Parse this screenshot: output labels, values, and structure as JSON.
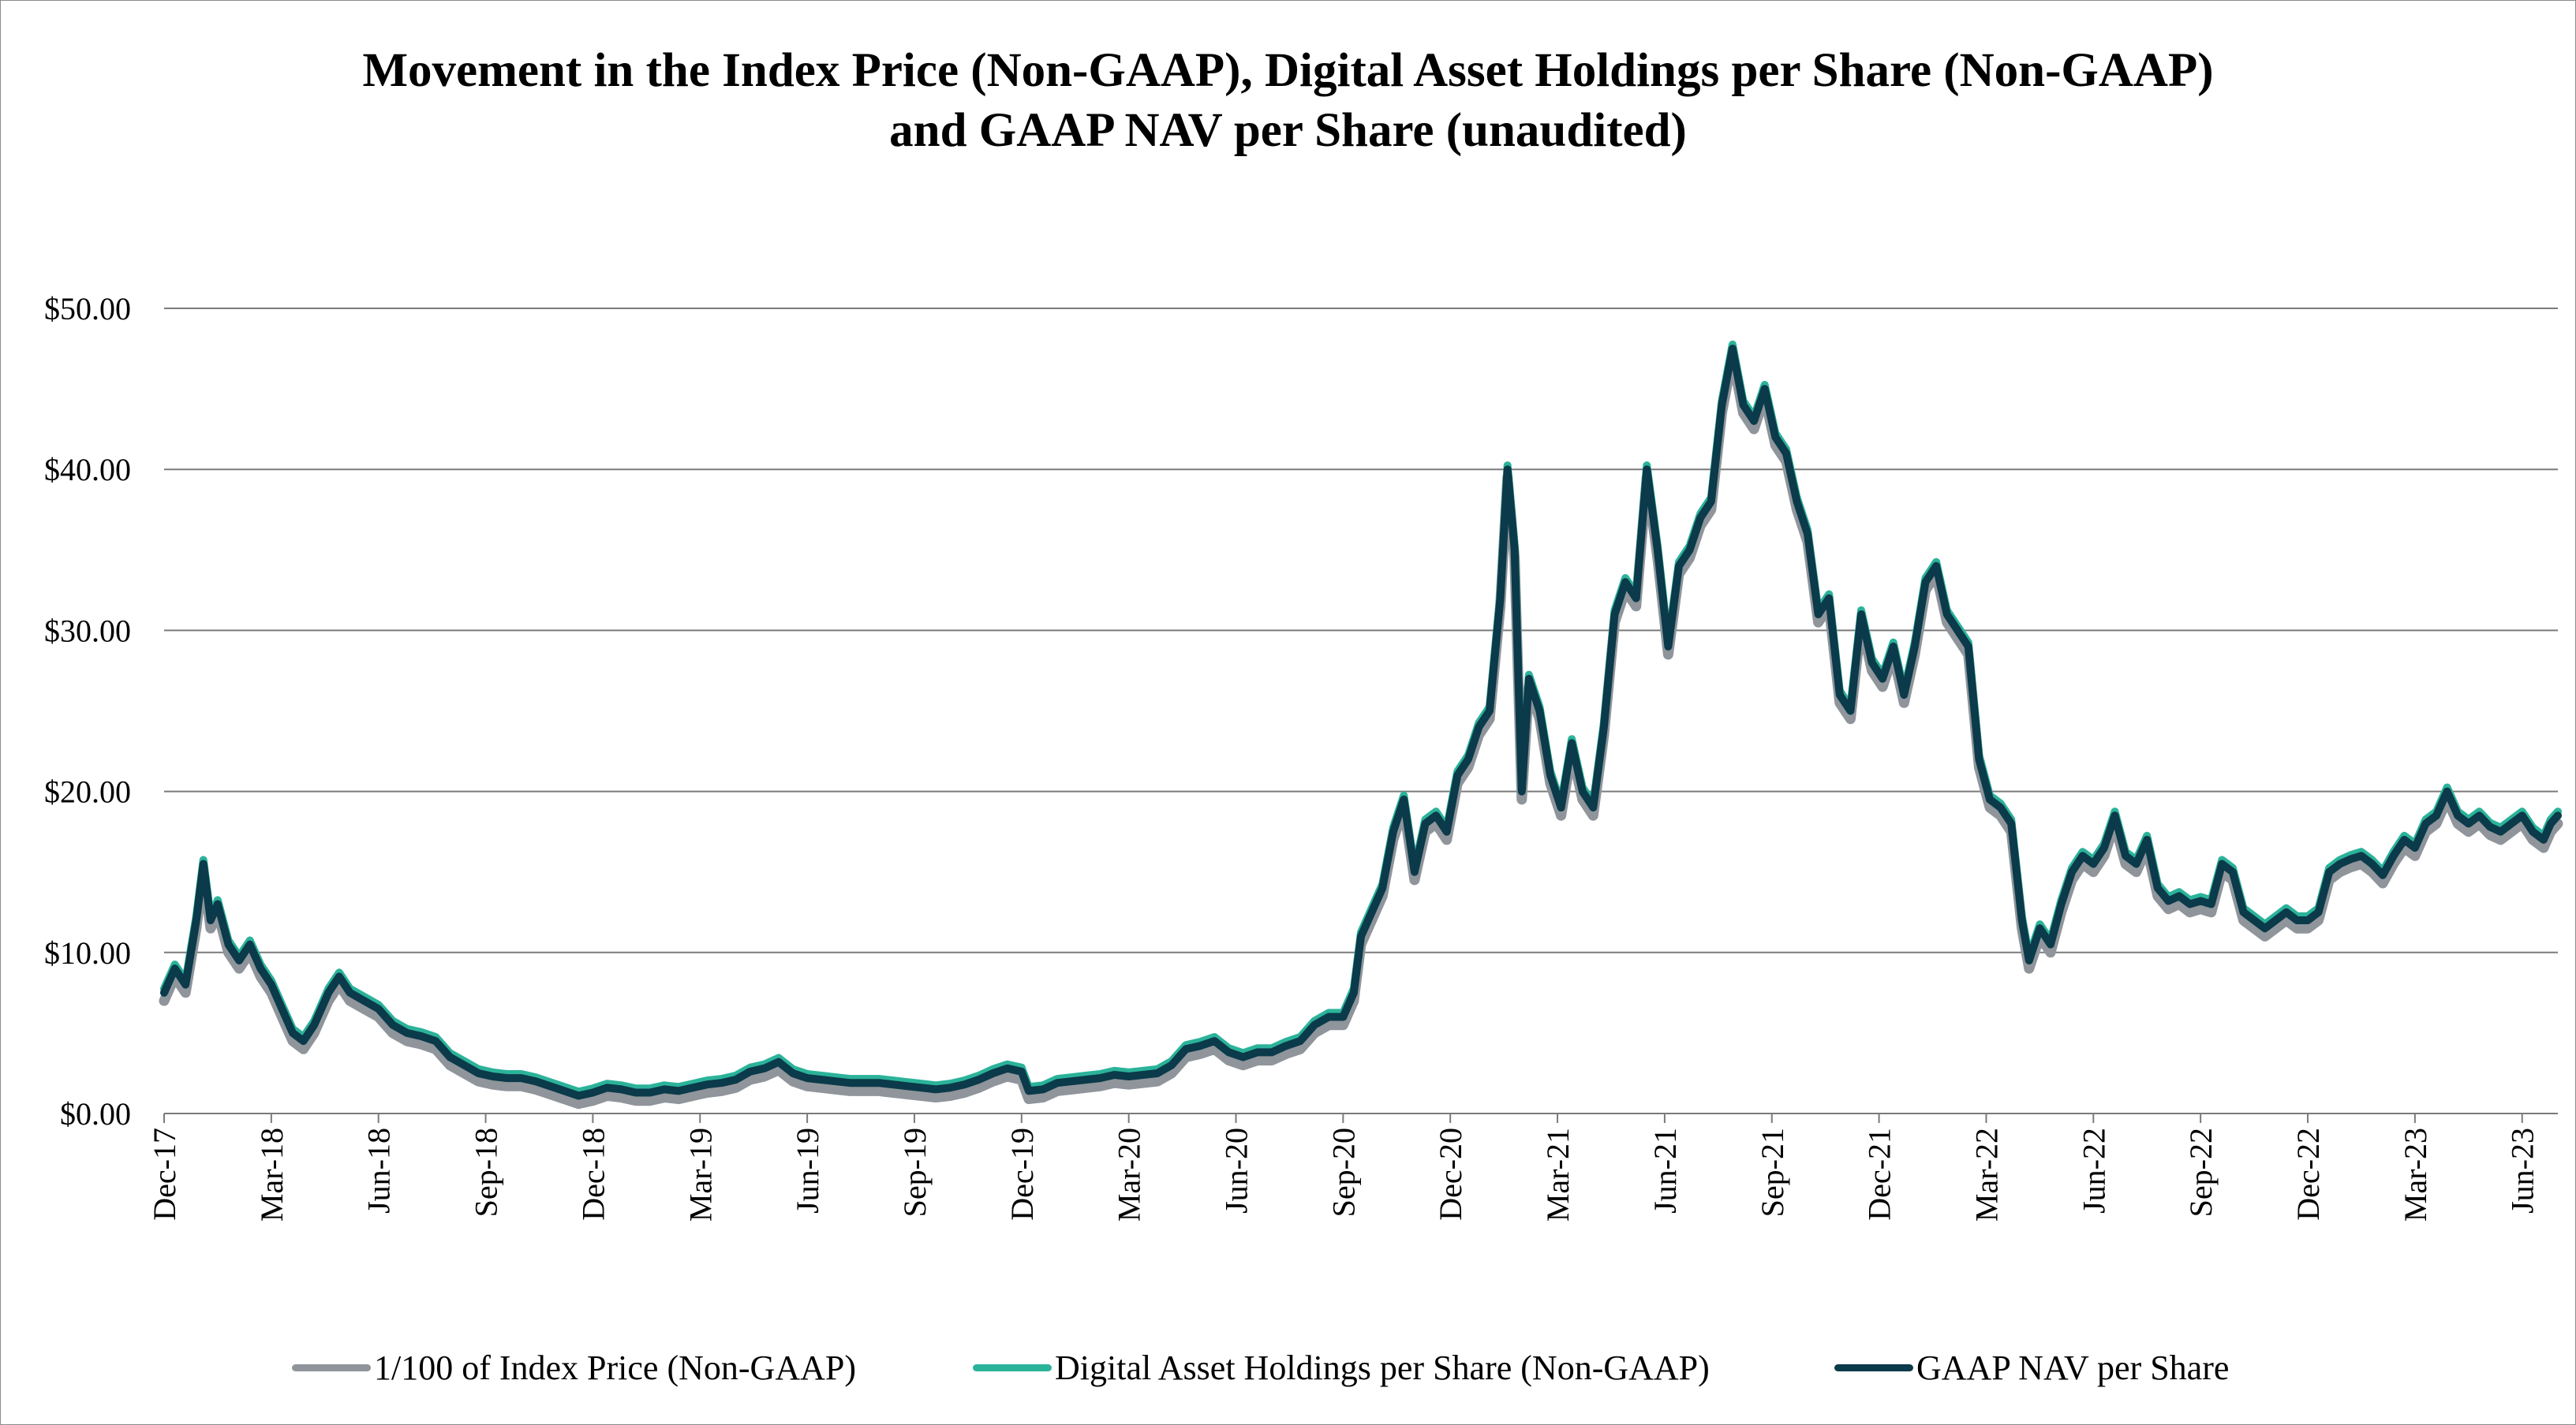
{
  "chart_data": {
    "type": "line",
    "title": [
      "Movement in the Index Price (Non-GAAP), Digital Asset Holdings per Share (Non-GAAP)",
      "and GAAP NAV per Share (unaudited)"
    ],
    "xlabel": "",
    "ylabel": "",
    "ylim": [
      0,
      50
    ],
    "grid": true,
    "y_ticks": [
      "$0.00",
      "$10.00",
      "$20.00",
      "$30.00",
      "$40.00",
      "$50.00"
    ],
    "y_tick_values": [
      0,
      10,
      20,
      30,
      40,
      50
    ],
    "x_tick_labels": [
      "Dec-17",
      "Mar-18",
      "Jun-18",
      "Sep-18",
      "Dec-18",
      "Mar-19",
      "Jun-19",
      "Sep-19",
      "Dec-19",
      "Mar-20",
      "Jun-20",
      "Sep-20",
      "Dec-20",
      "Mar-21",
      "Jun-21",
      "Sep-21",
      "Dec-21",
      "Mar-22",
      "Jun-22",
      "Sep-22",
      "Dec-22",
      "Mar-23",
      "Jun-23"
    ],
    "x_range_months": [
      0,
      67
    ],
    "legend_position": "bottom",
    "series": [
      {
        "name": "1/100 of Index Price (Non-GAAP)",
        "color": "#8f959b",
        "offset": -0.5
      },
      {
        "name": "Digital Asset Holdings per Share (Non-GAAP)",
        "color": "#2bb39a",
        "offset": 0.25
      },
      {
        "name": "GAAP NAV per Share",
        "color": "#0b3a4a",
        "offset": 0
      }
    ],
    "points": [
      [
        0,
        7.5
      ],
      [
        0.3,
        9.0
      ],
      [
        0.6,
        8.0
      ],
      [
        0.9,
        12.0
      ],
      [
        1.1,
        15.5
      ],
      [
        1.3,
        12.0
      ],
      [
        1.5,
        13.0
      ],
      [
        1.8,
        10.5
      ],
      [
        2.1,
        9.5
      ],
      [
        2.4,
        10.5
      ],
      [
        2.7,
        9.0
      ],
      [
        3.0,
        8.0
      ],
      [
        3.3,
        6.5
      ],
      [
        3.6,
        5.0
      ],
      [
        3.9,
        4.5
      ],
      [
        4.2,
        5.5
      ],
      [
        4.6,
        7.5
      ],
      [
        4.9,
        8.5
      ],
      [
        5.2,
        7.5
      ],
      [
        5.6,
        7.0
      ],
      [
        6.0,
        6.5
      ],
      [
        6.4,
        5.5
      ],
      [
        6.8,
        5.0
      ],
      [
        7.2,
        4.8
      ],
      [
        7.6,
        4.5
      ],
      [
        8.0,
        3.5
      ],
      [
        8.4,
        3.0
      ],
      [
        8.8,
        2.5
      ],
      [
        9.2,
        2.3
      ],
      [
        9.6,
        2.2
      ],
      [
        10.0,
        2.2
      ],
      [
        10.4,
        2.0
      ],
      [
        10.8,
        1.7
      ],
      [
        11.2,
        1.4
      ],
      [
        11.6,
        1.1
      ],
      [
        12.0,
        1.3
      ],
      [
        12.4,
        1.6
      ],
      [
        12.8,
        1.5
      ],
      [
        13.2,
        1.3
      ],
      [
        13.6,
        1.3
      ],
      [
        14.0,
        1.5
      ],
      [
        14.4,
        1.4
      ],
      [
        14.8,
        1.6
      ],
      [
        15.2,
        1.8
      ],
      [
        15.6,
        1.9
      ],
      [
        16.0,
        2.1
      ],
      [
        16.4,
        2.6
      ],
      [
        16.8,
        2.8
      ],
      [
        17.2,
        3.2
      ],
      [
        17.6,
        2.5
      ],
      [
        18.0,
        2.2
      ],
      [
        18.4,
        2.1
      ],
      [
        18.8,
        2.0
      ],
      [
        19.2,
        1.9
      ],
      [
        19.6,
        1.9
      ],
      [
        20.0,
        1.9
      ],
      [
        20.4,
        1.8
      ],
      [
        20.8,
        1.7
      ],
      [
        21.2,
        1.6
      ],
      [
        21.6,
        1.5
      ],
      [
        22.0,
        1.6
      ],
      [
        22.4,
        1.8
      ],
      [
        22.8,
        2.1
      ],
      [
        23.2,
        2.5
      ],
      [
        23.6,
        2.8
      ],
      [
        24.0,
        2.6
      ],
      [
        24.2,
        1.4
      ],
      [
        24.6,
        1.5
      ],
      [
        25.0,
        1.9
      ],
      [
        25.4,
        2.0
      ],
      [
        25.8,
        2.1
      ],
      [
        26.2,
        2.2
      ],
      [
        26.6,
        2.4
      ],
      [
        27.0,
        2.3
      ],
      [
        27.4,
        2.4
      ],
      [
        27.8,
        2.5
      ],
      [
        28.2,
        3.0
      ],
      [
        28.6,
        4.0
      ],
      [
        29.0,
        4.2
      ],
      [
        29.4,
        4.5
      ],
      [
        29.8,
        3.8
      ],
      [
        30.2,
        3.5
      ],
      [
        30.6,
        3.8
      ],
      [
        31.0,
        3.8
      ],
      [
        31.4,
        4.2
      ],
      [
        31.8,
        4.5
      ],
      [
        32.2,
        5.5
      ],
      [
        32.6,
        6.0
      ],
      [
        33.0,
        6.0
      ],
      [
        33.3,
        7.5
      ],
      [
        33.5,
        11.0
      ],
      [
        33.8,
        12.5
      ],
      [
        34.1,
        14.0
      ],
      [
        34.4,
        17.5
      ],
      [
        34.7,
        19.5
      ],
      [
        35.0,
        15.0
      ],
      [
        35.3,
        18.0
      ],
      [
        35.6,
        18.5
      ],
      [
        35.9,
        17.5
      ],
      [
        36.2,
        21.0
      ],
      [
        36.5,
        22.0
      ],
      [
        36.8,
        24.0
      ],
      [
        37.1,
        25.0
      ],
      [
        37.4,
        32.0
      ],
      [
        37.6,
        40.0
      ],
      [
        37.8,
        35.0
      ],
      [
        38.0,
        20.0
      ],
      [
        38.2,
        27.0
      ],
      [
        38.5,
        25.0
      ],
      [
        38.8,
        21.0
      ],
      [
        39.1,
        19.0
      ],
      [
        39.4,
        23.0
      ],
      [
        39.7,
        20.0
      ],
      [
        40.0,
        19.0
      ],
      [
        40.3,
        24.0
      ],
      [
        40.6,
        31.0
      ],
      [
        40.9,
        33.0
      ],
      [
        41.2,
        32.0
      ],
      [
        41.5,
        40.0
      ],
      [
        41.8,
        35.0
      ],
      [
        42.1,
        29.0
      ],
      [
        42.4,
        34.0
      ],
      [
        42.7,
        35.0
      ],
      [
        43.0,
        37.0
      ],
      [
        43.3,
        38.0
      ],
      [
        43.6,
        44.0
      ],
      [
        43.9,
        47.5
      ],
      [
        44.2,
        44.0
      ],
      [
        44.5,
        43.0
      ],
      [
        44.8,
        45.0
      ],
      [
        45.1,
        42.0
      ],
      [
        45.4,
        41.0
      ],
      [
        45.7,
        38.0
      ],
      [
        46.0,
        36.0
      ],
      [
        46.3,
        31.0
      ],
      [
        46.6,
        32.0
      ],
      [
        46.9,
        26.0
      ],
      [
        47.2,
        25.0
      ],
      [
        47.5,
        31.0
      ],
      [
        47.8,
        28.0
      ],
      [
        48.1,
        27.0
      ],
      [
        48.4,
        29.0
      ],
      [
        48.7,
        26.0
      ],
      [
        49.0,
        29.0
      ],
      [
        49.3,
        33.0
      ],
      [
        49.6,
        34.0
      ],
      [
        49.9,
        31.0
      ],
      [
        50.2,
        30.0
      ],
      [
        50.5,
        29.0
      ],
      [
        50.8,
        22.0
      ],
      [
        51.1,
        19.5
      ],
      [
        51.4,
        19.0
      ],
      [
        51.7,
        18.0
      ],
      [
        52.0,
        12.0
      ],
      [
        52.2,
        9.5
      ],
      [
        52.5,
        11.5
      ],
      [
        52.8,
        10.5
      ],
      [
        53.1,
        13.0
      ],
      [
        53.4,
        15.0
      ],
      [
        53.7,
        16.0
      ],
      [
        54.0,
        15.5
      ],
      [
        54.3,
        16.5
      ],
      [
        54.6,
        18.5
      ],
      [
        54.9,
        16.0
      ],
      [
        55.2,
        15.5
      ],
      [
        55.5,
        17.0
      ],
      [
        55.8,
        14.0
      ],
      [
        56.1,
        13.2
      ],
      [
        56.4,
        13.5
      ],
      [
        56.7,
        13.0
      ],
      [
        57.0,
        13.2
      ],
      [
        57.3,
        13.0
      ],
      [
        57.6,
        15.5
      ],
      [
        57.9,
        15.0
      ],
      [
        58.2,
        12.5
      ],
      [
        58.5,
        12.0
      ],
      [
        58.8,
        11.5
      ],
      [
        59.1,
        12.0
      ],
      [
        59.4,
        12.5
      ],
      [
        59.7,
        12.0
      ],
      [
        60.0,
        12.0
      ],
      [
        60.3,
        12.5
      ],
      [
        60.6,
        15.0
      ],
      [
        60.9,
        15.5
      ],
      [
        61.2,
        15.8
      ],
      [
        61.5,
        16.0
      ],
      [
        61.8,
        15.5
      ],
      [
        62.1,
        14.8
      ],
      [
        62.4,
        16.0
      ],
      [
        62.7,
        17.0
      ],
      [
        63.0,
        16.5
      ],
      [
        63.3,
        18.0
      ],
      [
        63.6,
        18.5
      ],
      [
        63.9,
        20.0
      ],
      [
        64.2,
        18.5
      ],
      [
        64.5,
        18.0
      ],
      [
        64.8,
        18.5
      ],
      [
        65.1,
        17.8
      ],
      [
        65.4,
        17.5
      ],
      [
        65.7,
        18.0
      ],
      [
        66.0,
        18.5
      ],
      [
        66.3,
        17.5
      ],
      [
        66.6,
        17.0
      ],
      [
        66.8,
        18.0
      ],
      [
        67.0,
        18.5
      ]
    ]
  }
}
